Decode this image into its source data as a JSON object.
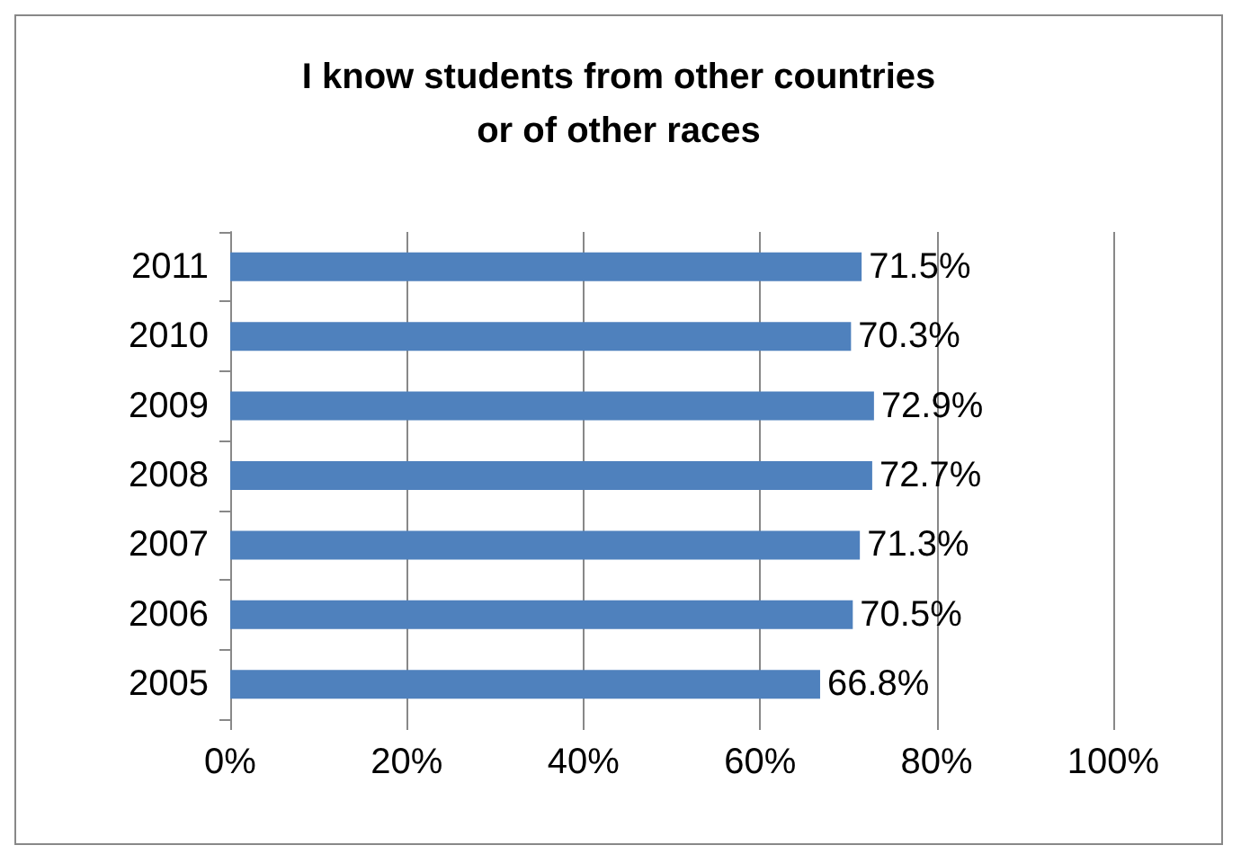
{
  "chart_data": {
    "type": "bar",
    "orientation": "horizontal",
    "title": "I know students from other countries\nor of other races",
    "categories": [
      "2011",
      "2010",
      "2009",
      "2008",
      "2007",
      "2006",
      "2005"
    ],
    "values": [
      71.5,
      70.3,
      72.9,
      72.7,
      71.3,
      70.5,
      66.8
    ],
    "value_labels": [
      "71.5%",
      "70.3%",
      "72.9%",
      "72.7%",
      "71.3%",
      "70.5%",
      "66.8%"
    ],
    "color": "#4f81bd",
    "xlim": [
      0,
      100
    ],
    "xticks": [
      {
        "value": 0,
        "label": "0%"
      },
      {
        "value": 20,
        "label": "20%"
      },
      {
        "value": 40,
        "label": "40%"
      },
      {
        "value": 60,
        "label": "60%"
      },
      {
        "value": 80,
        "label": "80%"
      },
      {
        "value": 100,
        "label": "100%"
      }
    ],
    "grid": "x"
  }
}
